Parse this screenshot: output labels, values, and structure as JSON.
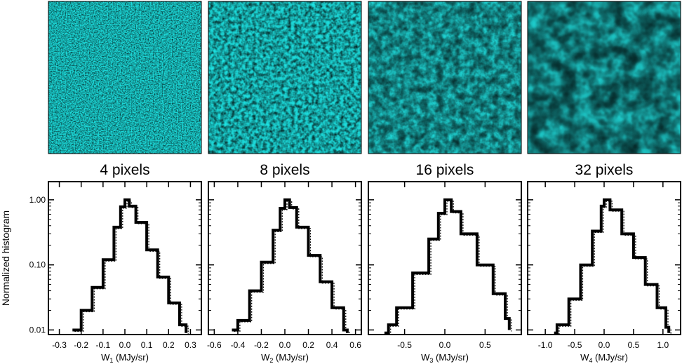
{
  "chart_data": {
    "type": "line",
    "ylabel": "Normalized histogram",
    "yscale": "log",
    "ylim": [
      0.0085,
      1.9
    ],
    "ytick_labels": [
      "1.00",
      "0.10",
      "0.01"
    ],
    "ytick_values": [
      1.0,
      0.1,
      0.01
    ],
    "panels": [
      {
        "title": "4 pixels",
        "xlabel_base": "W",
        "xlabel_sub": "1",
        "xlabel_unit": " (MJy/sr)",
        "xlim": [
          -0.35,
          0.35
        ],
        "xticks": [
          -0.3,
          -0.2,
          -0.1,
          0.0,
          0.1,
          0.2,
          0.3
        ],
        "xtick_labels": [
          "-0.3",
          "-0.2",
          "-0.1",
          "0.0",
          "0.1",
          "0.2",
          "0.3"
        ],
        "series": [
          {
            "x": [
              -0.24,
              -0.2,
              -0.15,
              -0.1,
              -0.05,
              -0.02,
              0.0,
              0.02,
              0.05,
              0.1,
              0.15,
              0.2,
              0.25,
              0.28
            ],
            "y": [
              0.01,
              0.02,
              0.045,
              0.12,
              0.38,
              0.78,
              1.0,
              0.8,
              0.45,
              0.17,
              0.065,
              0.026,
              0.012,
              0.009
            ]
          }
        ]
      },
      {
        "title": "8 pixels",
        "xlabel_base": "W",
        "xlabel_sub": "2",
        "xlabel_unit": " (MJy/sr)",
        "xlim": [
          -0.65,
          0.65
        ],
        "xticks": [
          -0.6,
          -0.4,
          -0.2,
          0.0,
          0.2,
          0.4,
          0.6
        ],
        "xtick_labels": [
          "-0.6",
          "-0.4",
          "-0.2",
          "0.0",
          "0.2",
          "0.4",
          "0.6"
        ],
        "series": [
          {
            "x": [
              -0.45,
              -0.4,
              -0.3,
              -0.2,
              -0.1,
              -0.04,
              0.0,
              0.04,
              0.1,
              0.2,
              0.3,
              0.4,
              0.5,
              0.53
            ],
            "y": [
              0.01,
              0.014,
              0.04,
              0.11,
              0.34,
              0.74,
              1.0,
              0.76,
              0.38,
              0.14,
              0.055,
              0.022,
              0.01,
              0.009
            ]
          }
        ]
      },
      {
        "title": "16 pixels",
        "xlabel_base": "W",
        "xlabel_sub": "3",
        "xlabel_unit": " (MJy/sr)",
        "xlim": [
          -0.95,
          0.95
        ],
        "xticks": [
          -0.5,
          0.0,
          0.5
        ],
        "xtick_labels": [
          "-0.5",
          "0.0",
          "0.5"
        ],
        "series": [
          {
            "x": [
              -0.75,
              -0.7,
              -0.6,
              -0.4,
              -0.2,
              -0.08,
              0.0,
              0.08,
              0.2,
              0.4,
              0.6,
              0.75,
              0.8
            ],
            "y": [
              0.009,
              0.012,
              0.022,
              0.075,
              0.25,
              0.62,
              1.0,
              0.66,
              0.3,
              0.1,
              0.036,
              0.015,
              0.01
            ]
          }
        ]
      },
      {
        "title": "32 pixels",
        "xlabel_base": "W",
        "xlabel_sub": "4",
        "xlabel_unit": " (MJy/sr)",
        "xlim": [
          -1.3,
          1.3
        ],
        "xticks": [
          -1.0,
          -0.5,
          0.0,
          0.5,
          1.0
        ],
        "xtick_labels": [
          "-1.0",
          "-0.5",
          "0.0",
          "0.5",
          "1.0"
        ],
        "series": [
          {
            "x": [
              -0.85,
              -0.8,
              -0.6,
              -0.4,
              -0.2,
              -0.05,
              0.0,
              0.1,
              0.3,
              0.5,
              0.7,
              0.9,
              1.05,
              1.1
            ],
            "y": [
              0.009,
              0.012,
              0.03,
              0.1,
              0.33,
              0.8,
              1.0,
              0.7,
              0.3,
              0.13,
              0.05,
              0.022,
              0.011,
              0.009
            ]
          }
        ]
      }
    ]
  }
}
